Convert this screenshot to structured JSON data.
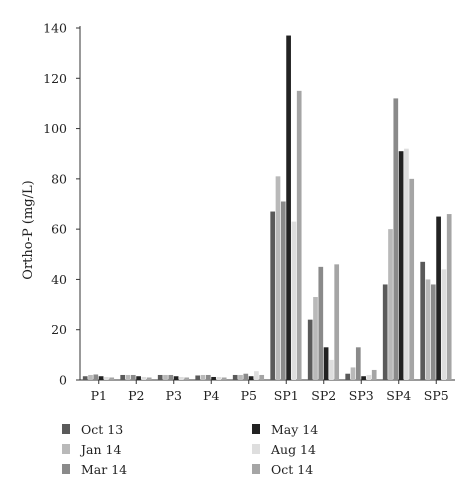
{
  "chart_data": {
    "type": "bar",
    "ylabel": "Ortho-P (mg/L)",
    "ylim": [
      0,
      140
    ],
    "yticks": [
      0,
      20,
      40,
      60,
      80,
      100,
      120,
      140
    ],
    "grid": false,
    "legend_position": "bottom",
    "categories": [
      "P1",
      "P2",
      "P3",
      "P4",
      "P5",
      "SP1",
      "SP2",
      "SP3",
      "SP4",
      "SP5"
    ],
    "series": [
      {
        "name": "Oct 13",
        "color": "#5a5a5a",
        "values": [
          1.5,
          2.0,
          2.0,
          1.8,
          2.0,
          67,
          24,
          2.5,
          38,
          47
        ]
      },
      {
        "name": "Jan 14",
        "color": "#b9b9b9",
        "values": [
          2.0,
          2.0,
          2.0,
          2.0,
          2.0,
          81,
          33,
          5,
          60,
          40
        ]
      },
      {
        "name": "Mar 14",
        "color": "#8a8a8a",
        "values": [
          2.2,
          2.0,
          2.0,
          2.0,
          2.5,
          71,
          45,
          13,
          112,
          38
        ]
      },
      {
        "name": "May 14",
        "color": "#222222",
        "values": [
          1.5,
          1.5,
          1.5,
          1.2,
          1.5,
          137,
          13,
          1.5,
          91,
          65
        ]
      },
      {
        "name": "Aug 14",
        "color": "#dedede",
        "values": [
          1.2,
          1.2,
          1.2,
          1.2,
          3.5,
          63,
          8,
          2,
          92,
          44
        ]
      },
      {
        "name": "Oct 14",
        "color": "#a5a5a5",
        "values": [
          1.0,
          1.0,
          1.0,
          1.0,
          2.0,
          115,
          46,
          4,
          80,
          66
        ]
      }
    ]
  },
  "legend_order": [
    0,
    3,
    1,
    4,
    2,
    5
  ]
}
